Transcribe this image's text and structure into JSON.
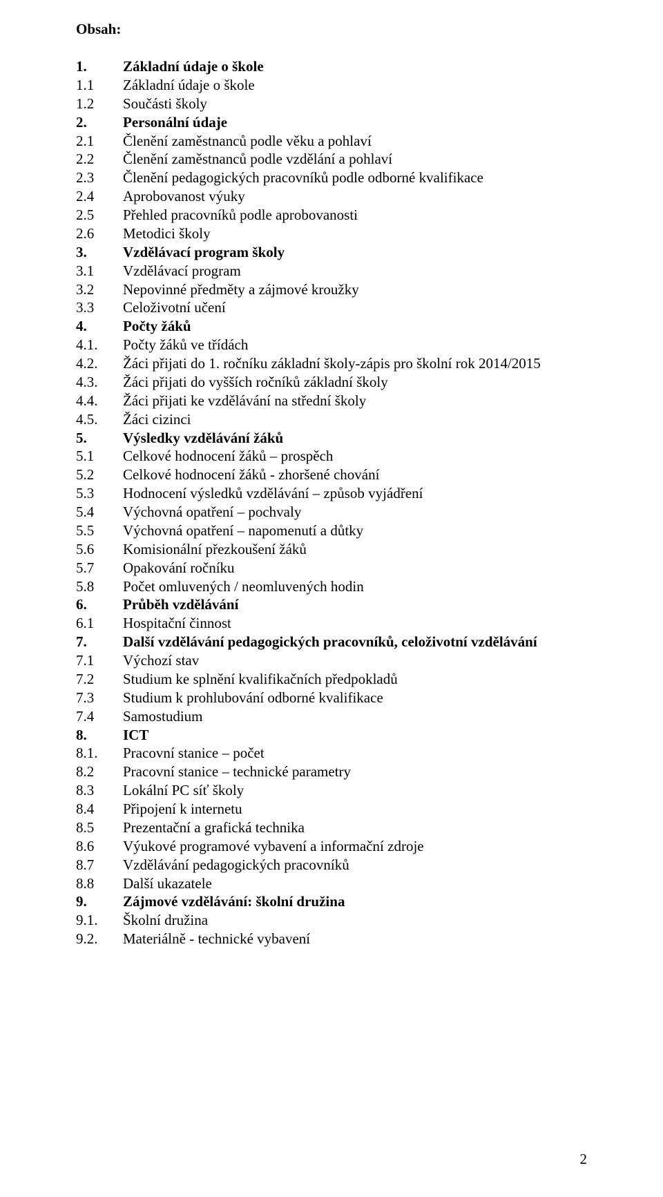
{
  "heading": "Obsah:",
  "page_number": "2",
  "toc": [
    {
      "num": "1.",
      "text": "Základní údaje o škole",
      "bold": true
    },
    {
      "num": "1.1",
      "text": "Základní údaje o škole",
      "bold": false
    },
    {
      "num": "1.2",
      "text": "Součásti školy",
      "bold": false
    },
    {
      "num": "2.",
      "text": "Personální údaje",
      "bold": true
    },
    {
      "num": "2.1",
      "text": "Členění zaměstnanců podle věku a pohlaví",
      "bold": false
    },
    {
      "num": "2.2",
      "text": "Členění zaměstnanců podle vzdělání a  pohlaví",
      "bold": false
    },
    {
      "num": "2.3",
      "text": "Členění pedagogických pracovníků podle odborné kvalifikace",
      "bold": false
    },
    {
      "num": "2.4",
      "text": "Aprobovanost výuky",
      "bold": false
    },
    {
      "num": "2.5",
      "text": "Přehled pracovníků podle aprobovanosti",
      "bold": false
    },
    {
      "num": "2.6",
      "text": "Metodici  školy",
      "bold": false
    },
    {
      "num": "3.",
      "text": "Vzdělávací program školy",
      "bold": true
    },
    {
      "num": "3.1",
      "text": "Vzdělávací program",
      "bold": false
    },
    {
      "num": "3.2",
      "text": "Nepovinné předměty a zájmové kroužky",
      "bold": false
    },
    {
      "num": "3.3",
      "text": "Celoživotní učení",
      "bold": false
    },
    {
      "num": "4.",
      "text": "Počty žáků",
      "bold": true
    },
    {
      "num": "4.1.",
      "text": "Počty žáků ve třídách",
      "bold": false
    },
    {
      "num": "4.2.",
      "text": "Žáci přijati do 1. ročníku základní školy-zápis pro školní rok 2014/2015",
      "bold": false
    },
    {
      "num": "4.3.",
      "text": "Žáci přijati do vyšších ročníků základní školy",
      "bold": false
    },
    {
      "num": "4.4.",
      "text": "Žáci přijati ke vzdělávání na střední školy",
      "bold": false
    },
    {
      "num": "4.5.",
      "text": "Žáci cizinci",
      "bold": false
    },
    {
      "num": "5.",
      "text": "Výsledky vzdělávání žáků",
      "bold": true
    },
    {
      "num": "5.1",
      "text": "Celkové hodnocení žáků – prospěch",
      "bold": false
    },
    {
      "num": "5.2",
      "text": "Celkové hodnocení žáků - zhoršené chování",
      "bold": false
    },
    {
      "num": "5.3",
      "text": "Hodnocení výsledků vzdělávání – způsob vyjádření",
      "bold": false
    },
    {
      "num": "5.4",
      "text": "Výchovná opatření – pochvaly",
      "bold": false
    },
    {
      "num": "5.5",
      "text": "Výchovná opatření – napomenutí a důtky",
      "bold": false
    },
    {
      "num": "5.6",
      "text": "Komisionální přezkoušení žáků",
      "bold": false
    },
    {
      "num": "5.7",
      "text": "Opakování ročníku",
      "bold": false
    },
    {
      "num": "5.8",
      "text": "Počet omluvených / neomluvených hodin",
      "bold": false
    },
    {
      "num": "6.",
      "text": "Průběh vzdělávání",
      "bold": true
    },
    {
      "num": "6.1",
      "text": "Hospitační činnost",
      "bold": false
    },
    {
      "num": "7.",
      "text": "Další vzdělávání pedagogických pracovníků, celoživotní vzdělávání",
      "bold": true
    },
    {
      "num": "7.1",
      "text": "Výchozí stav",
      "bold": false
    },
    {
      "num": "7.2",
      "text": "Studium ke splnění kvalifikačních předpokladů",
      "bold": false
    },
    {
      "num": "7.3",
      "text": "Studium k prohlubování odborné kvalifikace",
      "bold": false
    },
    {
      "num": "7.4",
      "text": "Samostudium",
      "bold": false
    },
    {
      "num": "8.",
      "text": "ICT",
      "bold": true
    },
    {
      "num": "8.1.",
      "text": "Pracovní stanice – počet",
      "bold": false
    },
    {
      "num": "8.2",
      "text": "Pracovní stanice – technické parametry",
      "bold": false
    },
    {
      "num": "8.3",
      "text": "Lokální PC síť školy",
      "bold": false
    },
    {
      "num": "8.4",
      "text": "Připojení k internetu",
      "bold": false
    },
    {
      "num": "8.5",
      "text": "Prezentační a grafická technika",
      "bold": false
    },
    {
      "num": "8.6",
      "text": "Výukové programové vybavení a informační zdroje",
      "bold": false
    },
    {
      "num": "8.7",
      "text": "Vzdělávání pedagogických pracovníků",
      "bold": false
    },
    {
      "num": "8.8",
      "text": "Další ukazatele",
      "bold": false
    },
    {
      "num": "9.",
      "text": "Zájmové vzdělávání: školní družina",
      "bold": true
    },
    {
      "num": "9.1.",
      "text": "Školní družina",
      "bold": false
    },
    {
      "num": "9.2.",
      "text": "Materiálně - technické vybavení",
      "bold": false
    }
  ]
}
